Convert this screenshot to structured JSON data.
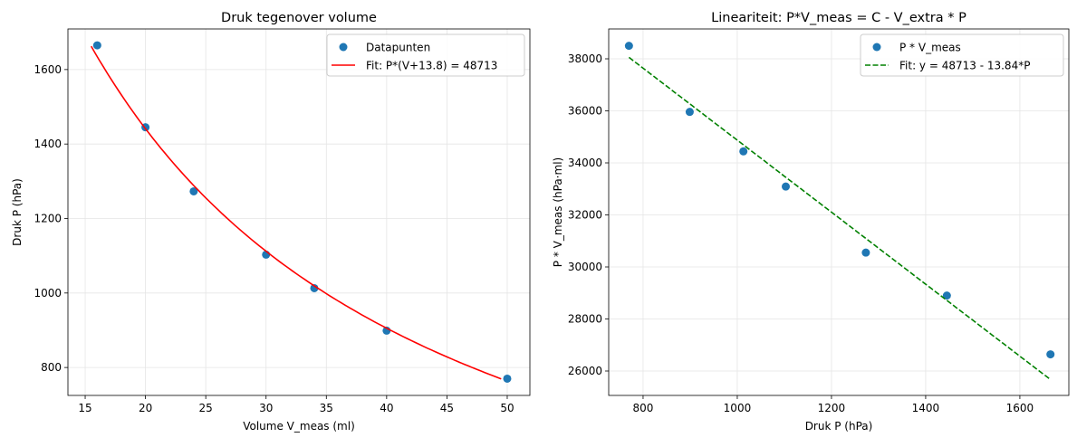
{
  "chart_data": [
    {
      "type": "scatter",
      "title": "Druk tegenover volume",
      "xlabel": "Volume V_meas (ml)",
      "ylabel": "Druk P (hPa)",
      "xlim": [
        13.57,
        51.88
      ],
      "ylim": [
        725,
        1709
      ],
      "xticks": [
        15,
        20,
        25,
        30,
        35,
        40,
        45,
        50
      ],
      "yticks": [
        800,
        1000,
        1200,
        1400,
        1600
      ],
      "grid": true,
      "legend_position": "top-right",
      "series": [
        {
          "name": "Datapunten",
          "kind": "points",
          "color": "#1f77b4",
          "x": [
            16,
            20,
            24,
            30,
            34,
            40,
            50
          ],
          "y": [
            1665,
            1445,
            1273,
            1103,
            1013,
            899,
            770
          ]
        },
        {
          "name": "Fit: P*(V+13.8) = 48713",
          "kind": "curve",
          "color": "#ff0000",
          "formula": "P = 48713 / (V + 13.8)",
          "x_range": [
            15.5,
            49.5
          ]
        }
      ]
    },
    {
      "type": "scatter",
      "title": "Lineariteit: P*V_meas = C - V_extra * P",
      "xlabel": "Druk P (hPa)",
      "ylabel": "P * V_meas (hPa·ml)",
      "xlim": [
        727,
        1704
      ],
      "ylim": [
        25061,
        39148
      ],
      "xticks": [
        800,
        1000,
        1200,
        1400,
        1600
      ],
      "yticks": [
        26000,
        28000,
        30000,
        32000,
        34000,
        36000,
        38000
      ],
      "grid": true,
      "legend_position": "top-right",
      "series": [
        {
          "name": "P * V_meas",
          "kind": "points",
          "color": "#1f77b4",
          "x": [
            770,
            899,
            1013,
            1103,
            1273,
            1445,
            1665
          ],
          "y": [
            38500,
            35960,
            34442,
            33090,
            30552,
            28900,
            26640
          ]
        },
        {
          "name": "Fit: y = 48713 - 13.84*P",
          "kind": "dashed-line",
          "color": "#008000",
          "intercept": 48713,
          "slope": -13.84,
          "x_range": [
            770,
            1665
          ]
        }
      ]
    }
  ]
}
